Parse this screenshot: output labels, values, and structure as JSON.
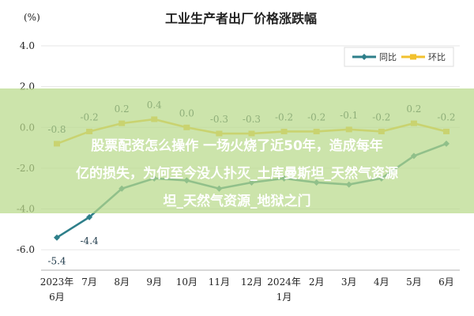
{
  "chart_data": {
    "type": "line",
    "title": "工业生产者出厂价格涨跌幅",
    "ylabel": "(%)",
    "ylim": [
      -7.0,
      4.0
    ],
    "yticks": [
      "4.0",
      "2.0",
      "0.0",
      "-2.0",
      "-4.0",
      "-6.0"
    ],
    "ytick_values": [
      4.0,
      2.0,
      0.0,
      -2.0,
      -4.0,
      -6.0
    ],
    "categories": [
      "2023年6月",
      "7月",
      "8月",
      "9月",
      "10月",
      "11月",
      "12月",
      "2024年1月",
      "2月",
      "3月",
      "4月",
      "5月",
      "6月"
    ],
    "category_labels": [
      {
        "main": "2023年",
        "sub": "6月"
      },
      {
        "main": "7月",
        "sub": ""
      },
      {
        "main": "8月",
        "sub": ""
      },
      {
        "main": "9月",
        "sub": ""
      },
      {
        "main": "10月",
        "sub": ""
      },
      {
        "main": "11月",
        "sub": ""
      },
      {
        "main": "12月",
        "sub": ""
      },
      {
        "main": "2024年",
        "sub": "1月"
      },
      {
        "main": "2月",
        "sub": ""
      },
      {
        "main": "3月",
        "sub": ""
      },
      {
        "main": "4月",
        "sub": ""
      },
      {
        "main": "5月",
        "sub": ""
      },
      {
        "main": "6月",
        "sub": ""
      }
    ],
    "series": [
      {
        "name": "同比",
        "color": "#2e7f8a",
        "values": [
          -5.4,
          -4.4,
          -3.0,
          -2.5,
          -2.6,
          -3.0,
          -2.7,
          -2.5,
          -2.7,
          -2.8,
          -2.5,
          -1.4,
          -0.8
        ],
        "labels": [
          "-5.4",
          "-4.4",
          "",
          "",
          "",
          "",
          "",
          "",
          "",
          "",
          "",
          "",
          ""
        ]
      },
      {
        "name": "环比",
        "color": "#f2c12e",
        "values": [
          -0.8,
          -0.2,
          0.2,
          0.4,
          0.0,
          -0.3,
          -0.3,
          -0.2,
          -0.2,
          -0.1,
          -0.2,
          0.2,
          -0.2
        ],
        "labels": [
          "-0.8",
          "-0.2",
          "0.2",
          "0.4",
          "0.0",
          "-0.3",
          "-0.3",
          "-0.2",
          "-0.2",
          "-0.1",
          "-0.2",
          "0.2",
          "-0.2"
        ]
      }
    ],
    "legend_position": "top-right",
    "grid": true
  },
  "overlay": {
    "line1": "股票配资怎么操作 一场火烧了近50年，造成每年",
    "line2": "亿的损失，为何至今没人扑灭_土库曼斯坦_天然气资源",
    "line3": "坦_天然气资源_地狱之门"
  }
}
